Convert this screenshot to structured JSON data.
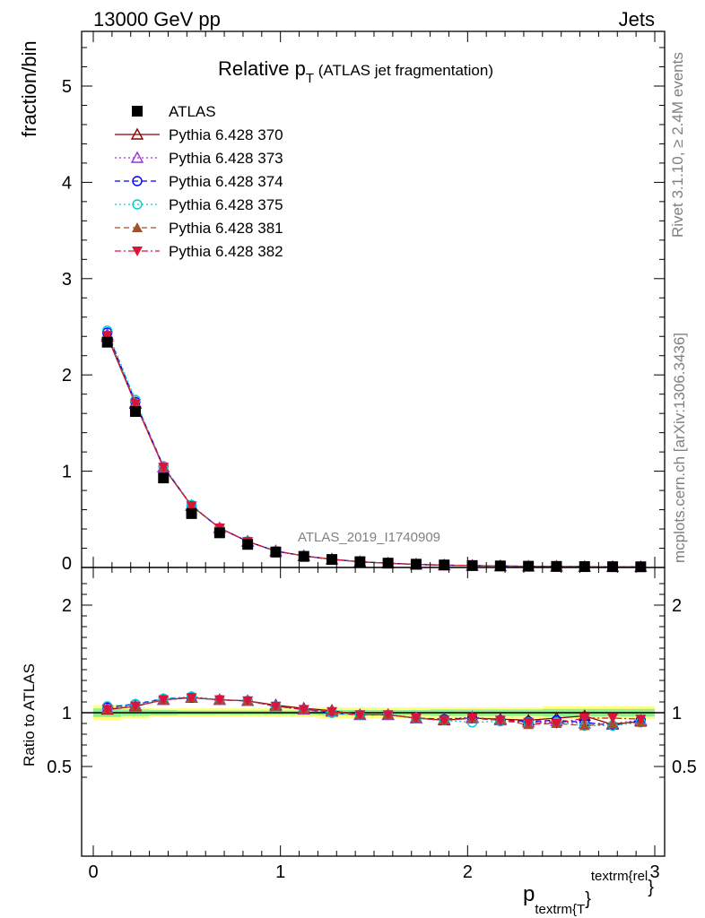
{
  "header": {
    "left": "13000 GeV pp",
    "right": "Jets"
  },
  "side_text": {
    "rivet": "Rivet 3.1.10, ≥ 2.4M events",
    "mcplots": "mcplots.cern.ch [arXiv:1306.3436]"
  },
  "title": {
    "main": "Relative p",
    "sub": "T",
    "paren": " (ATLAS jet fragmentation)"
  },
  "watermark": "ATLAS_2019_I1740909",
  "xlabel": {
    "p": "p",
    "sub": "textrm{T",
    "brace": "}",
    "sup": "textrm{rel",
    "tail": "}"
  },
  "colors": {
    "atlas": "#000000",
    "p370": "#8b0000",
    "p373": "#9932cc",
    "p374": "#0000ff",
    "p375": "#00ced1",
    "p381": "#a0522d",
    "p382": "#dc143c",
    "band_inner": "#90ee90",
    "band_outer": "#ffff80"
  },
  "chart_data": [
    {
      "type": "scatter",
      "ylabel": "fraction/bin",
      "xlim": [
        -0.05,
        3.05
      ],
      "ylim": [
        0,
        5.6
      ],
      "yticks": [
        0,
        1,
        2,
        3,
        4,
        5
      ],
      "ytick_labels": [
        "0",
        "1",
        "2",
        "3",
        "4",
        "5"
      ],
      "x": [
        0.075,
        0.225,
        0.375,
        0.525,
        0.675,
        0.825,
        0.975,
        1.125,
        1.275,
        1.425,
        1.575,
        1.725,
        1.875,
        2.025,
        2.175,
        2.325,
        2.475,
        2.625,
        2.775,
        2.925
      ],
      "series": [
        {
          "name": "ATLAS",
          "style": "data",
          "values": [
            2.34,
            1.62,
            0.93,
            0.56,
            0.36,
            0.24,
            0.16,
            0.115,
            0.083,
            0.06,
            0.045,
            0.034,
            0.026,
            0.02,
            0.016,
            0.013,
            0.011,
            0.009,
            0.008,
            0.007
          ]
        },
        {
          "name": "Pythia 6.428 370",
          "style": "p370",
          "values": [
            2.4,
            1.7,
            1.04,
            0.64,
            0.41,
            0.27,
            0.17,
            0.12,
            0.086,
            0.059,
            0.044,
            0.032,
            0.024,
            0.019,
            0.015,
            0.012,
            0.0105,
            0.0087,
            0.007,
            0.0064
          ]
        },
        {
          "name": "Pythia 6.428 373",
          "style": "p373",
          "values": [
            2.42,
            1.71,
            1.04,
            0.64,
            0.41,
            0.27,
            0.17,
            0.12,
            0.085,
            0.059,
            0.044,
            0.032,
            0.024,
            0.019,
            0.015,
            0.012,
            0.0101,
            0.0081,
            0.0072,
            0.0065
          ]
        },
        {
          "name": "Pythia 6.428 374",
          "style": "p374",
          "values": [
            2.44,
            1.72,
            1.05,
            0.64,
            0.41,
            0.27,
            0.17,
            0.12,
            0.083,
            0.059,
            0.044,
            0.032,
            0.024,
            0.019,
            0.015,
            0.012,
            0.0102,
            0.0082,
            0.007,
            0.0065
          ]
        },
        {
          "name": "Pythia 6.428 375",
          "style": "p375",
          "values": [
            2.46,
            1.74,
            1.05,
            0.65,
            0.41,
            0.27,
            0.17,
            0.12,
            0.083,
            0.059,
            0.044,
            0.032,
            0.024,
            0.018,
            0.015,
            0.0118,
            0.01,
            0.0079,
            0.007,
            0.0064
          ]
        },
        {
          "name": "Pythia 6.428 381",
          "style": "p381",
          "values": [
            2.41,
            1.71,
            1.04,
            0.64,
            0.41,
            0.27,
            0.17,
            0.12,
            0.085,
            0.059,
            0.044,
            0.032,
            0.024,
            0.019,
            0.015,
            0.0115,
            0.01,
            0.0079,
            0.0071,
            0.0064
          ]
        },
        {
          "name": "Pythia 6.428 382",
          "style": "p382",
          "values": [
            2.41,
            1.7,
            1.04,
            0.64,
            0.41,
            0.27,
            0.17,
            0.12,
            0.084,
            0.059,
            0.044,
            0.032,
            0.024,
            0.019,
            0.015,
            0.0118,
            0.0099,
            0.0085,
            0.0076,
            0.0066
          ]
        }
      ]
    },
    {
      "type": "scatter",
      "ylabel": "Ratio to ATLAS",
      "xlim": [
        -0.05,
        3.05
      ],
      "ylim": [
        0.35,
        2.3
      ],
      "yticks": [
        0.5,
        1,
        2
      ],
      "ytick_labels": [
        "0.5",
        "1",
        "2"
      ],
      "xticks": [
        0,
        1,
        2,
        3
      ],
      "xtick_labels": [
        "0",
        "1",
        "2",
        "3"
      ],
      "x": [
        0.075,
        0.225,
        0.375,
        0.525,
        0.675,
        0.825,
        0.975,
        1.125,
        1.275,
        1.425,
        1.575,
        1.725,
        1.875,
        2.025,
        2.175,
        2.325,
        2.475,
        2.625,
        2.775,
        2.925
      ],
      "band_outer": [
        0.07,
        0.05,
        0.04,
        0.04,
        0.04,
        0.04,
        0.04,
        0.04,
        0.05,
        0.05,
        0.05,
        0.05,
        0.05,
        0.05,
        0.05,
        0.05,
        0.06,
        0.06,
        0.06,
        0.06
      ],
      "band_inner": [
        0.04,
        0.03,
        0.025,
        0.02,
        0.02,
        0.02,
        0.02,
        0.02,
        0.025,
        0.025,
        0.025,
        0.025,
        0.03,
        0.03,
        0.03,
        0.03,
        0.035,
        0.035,
        0.035,
        0.035
      ],
      "series": [
        {
          "name": "Pythia 6.428 370",
          "style": "p370",
          "values": [
            1.03,
            1.06,
            1.12,
            1.14,
            1.12,
            1.11,
            1.07,
            1.04,
            1.02,
            0.98,
            0.98,
            0.95,
            0.93,
            0.95,
            0.94,
            0.93,
            0.95,
            0.97,
            0.89,
            0.92
          ]
        },
        {
          "name": "Pythia 6.428 373",
          "style": "p373",
          "values": [
            1.04,
            1.07,
            1.12,
            1.14,
            1.12,
            1.11,
            1.06,
            1.03,
            1.01,
            0.98,
            0.98,
            0.95,
            0.94,
            0.96,
            0.93,
            0.91,
            0.92,
            0.9,
            0.9,
            0.93
          ]
        },
        {
          "name": "Pythia 6.428 374",
          "style": "p374",
          "values": [
            1.05,
            1.08,
            1.13,
            1.14,
            1.12,
            1.11,
            1.06,
            1.03,
            1.0,
            0.98,
            0.98,
            0.95,
            0.94,
            0.95,
            0.93,
            0.92,
            0.93,
            0.91,
            0.88,
            0.93
          ]
        },
        {
          "name": "Pythia 6.428 375",
          "style": "p375",
          "values": [
            1.06,
            1.08,
            1.13,
            1.15,
            1.12,
            1.11,
            1.06,
            1.03,
            1.0,
            0.98,
            0.98,
            0.95,
            0.93,
            0.91,
            0.92,
            0.91,
            0.91,
            0.88,
            0.88,
            0.91
          ]
        },
        {
          "name": "Pythia 6.428 381",
          "style": "p381",
          "values": [
            1.03,
            1.06,
            1.12,
            1.14,
            1.12,
            1.11,
            1.06,
            1.03,
            1.02,
            0.98,
            0.98,
            0.95,
            0.93,
            0.95,
            0.93,
            0.89,
            0.9,
            0.88,
            0.9,
            0.91
          ]
        },
        {
          "name": "Pythia 6.428 382",
          "style": "p382",
          "values": [
            1.03,
            1.06,
            1.12,
            1.14,
            1.12,
            1.11,
            1.06,
            1.03,
            1.01,
            0.98,
            0.98,
            0.95,
            0.93,
            0.95,
            0.93,
            0.91,
            0.9,
            0.95,
            0.95,
            0.94
          ]
        }
      ]
    }
  ]
}
